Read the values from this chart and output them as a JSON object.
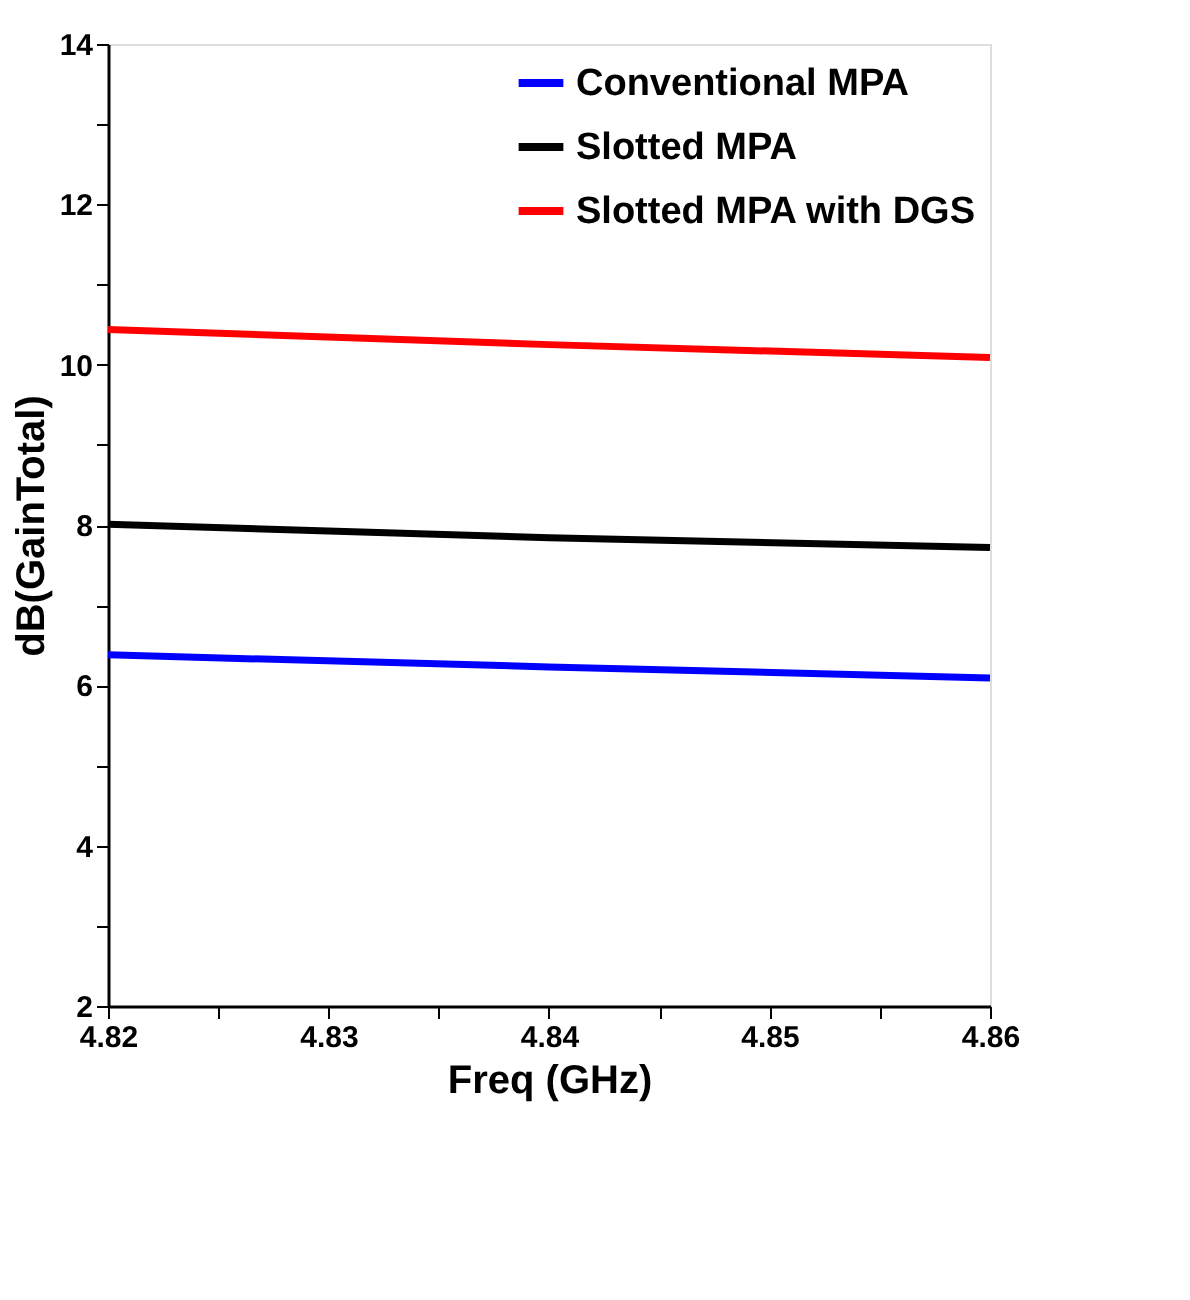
{
  "chart_data": {
    "type": "line",
    "xlabel": "Freq (GHz)",
    "ylabel": "dB(GainTotal)",
    "x": [
      4.82,
      4.84,
      4.86
    ],
    "series": [
      {
        "name": "Conventional MPA",
        "color": "#0000ff",
        "values": [
          6.38,
          6.23,
          6.09
        ]
      },
      {
        "name": "Slotted MPA",
        "color": "#000000",
        "values": [
          8.01,
          7.84,
          7.72
        ]
      },
      {
        "name": "Slotted MPA with DGS",
        "color": "#ff0000",
        "values": [
          10.44,
          10.25,
          10.09
        ]
      }
    ],
    "xlim": [
      4.82,
      4.86
    ],
    "xticks": [
      4.82,
      {
        "value": 4.825,
        "label": null
      },
      4.83,
      {
        "value": 4.835,
        "label": null
      },
      4.84,
      {
        "value": 4.845,
        "label": null
      },
      4.85,
      {
        "value": 4.855,
        "label": null
      },
      4.86
    ],
    "ylim": [
      2,
      14
    ],
    "yticks": [
      2,
      {
        "value": 3,
        "label": null
      },
      4,
      {
        "value": 5,
        "label": null
      },
      6,
      {
        "value": 7,
        "label": null
      },
      8,
      {
        "value": 9,
        "label": null
      },
      10,
      {
        "value": 11,
        "label": null
      },
      12,
      {
        "value": 13,
        "label": null
      },
      14
    ],
    "legend": "top right",
    "grid": false,
    "line_style": "solid"
  }
}
